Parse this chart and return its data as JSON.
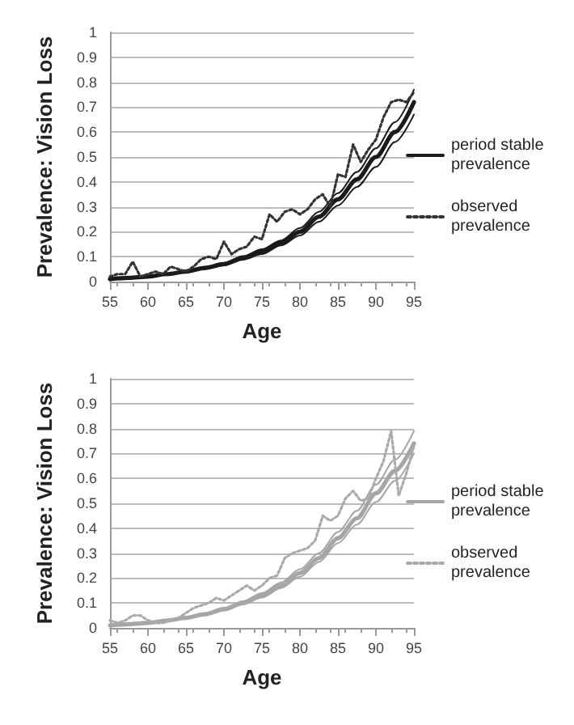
{
  "chart_data": [
    {
      "type": "line",
      "xlabel": "Age",
      "ylabel": "Prevalence: Vision Loss",
      "xlim": [
        55,
        95
      ],
      "xticks": [
        55,
        60,
        65,
        70,
        75,
        80,
        85,
        90,
        95
      ],
      "ylim": [
        0,
        1
      ],
      "yticks": [
        0,
        0.1,
        0.2,
        0.3,
        0.4,
        0.5,
        0.6,
        0.7,
        0.8,
        0.9,
        1
      ],
      "grid": "y",
      "legend": "right",
      "marker": "none",
      "series": [
        {
          "name": "period stable prevalence",
          "color": "#1a1a1a",
          "line_style": "solid",
          "x": [
            55,
            57.5,
            60,
            62.5,
            65,
            67.5,
            70,
            72.5,
            75,
            77.5,
            80,
            82.5,
            85,
            87.5,
            90,
            92.5,
            95
          ],
          "values": [
            0.01,
            0.015,
            0.02,
            0.03,
            0.04,
            0.055,
            0.07,
            0.095,
            0.12,
            0.155,
            0.2,
            0.26,
            0.33,
            0.41,
            0.5,
            0.6,
            0.72
          ]
        },
        {
          "color": "#1a1a1a",
          "line_style": "solid",
          "x": [
            55,
            57.5,
            60,
            62.5,
            65,
            67.5,
            70,
            72.5,
            75,
            77.5,
            80,
            82.5,
            85,
            87.5,
            90,
            92.5,
            95
          ],
          "values": [
            0.009,
            0.014,
            0.019,
            0.028,
            0.037,
            0.051,
            0.065,
            0.088,
            0.11,
            0.145,
            0.185,
            0.24,
            0.305,
            0.38,
            0.46,
            0.56,
            0.67
          ]
        },
        {
          "color": "#1a1a1a",
          "line_style": "solid",
          "x": [
            55,
            57.5,
            60,
            62.5,
            65,
            67.5,
            70,
            72.5,
            75,
            77.5,
            80,
            82.5,
            85,
            87.5,
            90,
            92.5,
            95
          ],
          "values": [
            0.011,
            0.016,
            0.022,
            0.032,
            0.043,
            0.059,
            0.075,
            0.102,
            0.13,
            0.165,
            0.215,
            0.28,
            0.355,
            0.44,
            0.535,
            0.64,
            0.77
          ]
        },
        {
          "name": "observed prevalence",
          "color": "#333333",
          "line_style": "dotted",
          "x": [
            55,
            56,
            57,
            58,
            59,
            60,
            61,
            62,
            63,
            64,
            65,
            66,
            67,
            68,
            69,
            70,
            71,
            72,
            73,
            74,
            75,
            76,
            77,
            78,
            79,
            80,
            81,
            82,
            83,
            84,
            85,
            86,
            87,
            88,
            89,
            90,
            91,
            92,
            93,
            94,
            95
          ],
          "values": [
            0.02,
            0.03,
            0.03,
            0.08,
            0.02,
            0.03,
            0.04,
            0.03,
            0.06,
            0.05,
            0.04,
            0.06,
            0.09,
            0.1,
            0.09,
            0.16,
            0.11,
            0.13,
            0.14,
            0.18,
            0.17,
            0.27,
            0.24,
            0.28,
            0.29,
            0.27,
            0.29,
            0.33,
            0.35,
            0.3,
            0.43,
            0.42,
            0.55,
            0.48,
            0.53,
            0.57,
            0.66,
            0.72,
            0.73,
            0.72,
            0.76
          ]
        }
      ]
    },
    {
      "type": "line",
      "xlabel": "Age",
      "ylabel": "Prevalence: Vision Loss",
      "xlim": [
        55,
        95
      ],
      "xticks": [
        55,
        60,
        65,
        70,
        75,
        80,
        85,
        90,
        95
      ],
      "ylim": [
        0,
        1
      ],
      "yticks": [
        0,
        0.1,
        0.2,
        0.3,
        0.4,
        0.5,
        0.6,
        0.7,
        0.8,
        0.9,
        1
      ],
      "grid": "y",
      "legend": "right",
      "marker": "none",
      "series": [
        {
          "name": "period stable prevalence",
          "color": "#a6a6a6",
          "line_style": "solid",
          "x": [
            55,
            57.5,
            60,
            62.5,
            65,
            67.5,
            70,
            72.5,
            75,
            77.5,
            80,
            82.5,
            85,
            87.5,
            90,
            92.5,
            95
          ],
          "values": [
            0.01,
            0.015,
            0.02,
            0.03,
            0.04,
            0.055,
            0.075,
            0.1,
            0.13,
            0.17,
            0.22,
            0.28,
            0.36,
            0.44,
            0.54,
            0.63,
            0.74
          ]
        },
        {
          "color": "#a6a6a6",
          "line_style": "solid",
          "x": [
            55,
            57.5,
            60,
            62.5,
            65,
            67.5,
            70,
            72.5,
            75,
            77.5,
            80,
            82.5,
            85,
            87.5,
            90,
            92.5,
            95
          ],
          "values": [
            0.009,
            0.014,
            0.019,
            0.028,
            0.038,
            0.052,
            0.07,
            0.094,
            0.122,
            0.16,
            0.205,
            0.265,
            0.34,
            0.415,
            0.505,
            0.59,
            0.7
          ]
        },
        {
          "color": "#a6a6a6",
          "line_style": "solid",
          "x": [
            55,
            57.5,
            60,
            62.5,
            65,
            67.5,
            70,
            72.5,
            75,
            77.5,
            80,
            82.5,
            85,
            87.5,
            90,
            92.5,
            95
          ],
          "values": [
            0.011,
            0.016,
            0.022,
            0.032,
            0.043,
            0.059,
            0.08,
            0.107,
            0.14,
            0.182,
            0.235,
            0.3,
            0.385,
            0.47,
            0.575,
            0.675,
            0.79
          ]
        },
        {
          "name": "observed prevalence",
          "color": "#aaaaaa",
          "line_style": "dotted",
          "x": [
            55,
            56,
            57,
            58,
            59,
            60,
            61,
            62,
            63,
            64,
            65,
            66,
            67,
            68,
            69,
            70,
            71,
            72,
            73,
            74,
            75,
            76,
            77,
            78,
            79,
            80,
            81,
            82,
            83,
            84,
            85,
            86,
            87,
            88,
            89,
            90,
            91,
            92,
            93,
            94,
            95
          ],
          "values": [
            0.03,
            0.02,
            0.03,
            0.05,
            0.05,
            0.03,
            0.02,
            0.02,
            0.03,
            0.04,
            0.06,
            0.08,
            0.09,
            0.1,
            0.12,
            0.11,
            0.13,
            0.15,
            0.17,
            0.15,
            0.17,
            0.2,
            0.21,
            0.28,
            0.3,
            0.31,
            0.32,
            0.35,
            0.45,
            0.43,
            0.45,
            0.52,
            0.55,
            0.51,
            0.52,
            0.6,
            0.67,
            0.79,
            0.53,
            0.62,
            0.73
          ]
        }
      ]
    }
  ]
}
